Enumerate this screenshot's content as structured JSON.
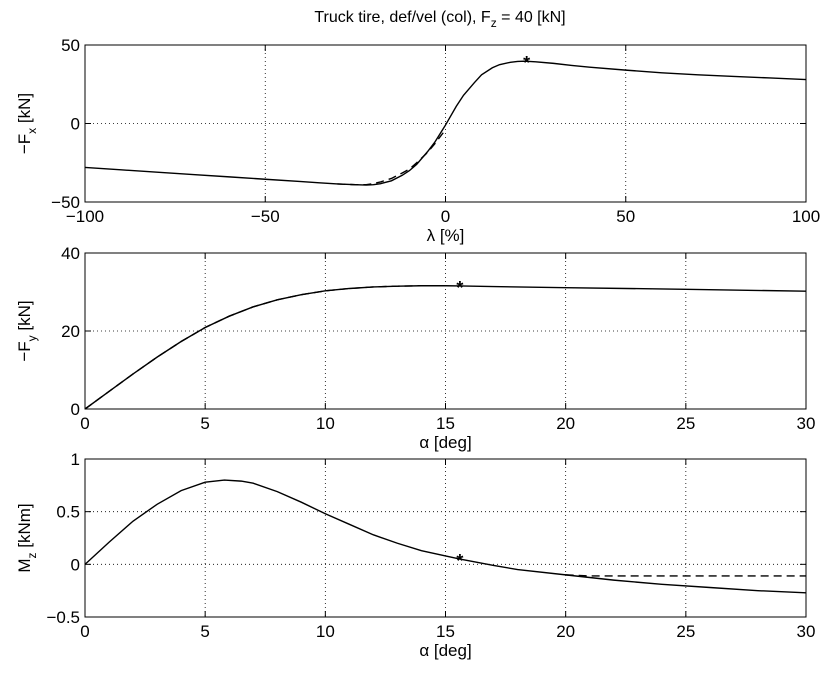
{
  "figure": {
    "title": "Truck tire, def/vel (col), F",
    "title_sub": "z",
    "title_suffix": " = 40 [kN]"
  },
  "chart_data": [
    {
      "type": "line",
      "xlabel": "λ [%]",
      "ylabel": "−F",
      "ylabel_sub": "x",
      "ylabel_suffix": " [kN]",
      "xlim": [
        -100,
        100
      ],
      "ylim": [
        -50,
        50
      ],
      "xticks": [
        "−100",
        "−50",
        "0",
        "50",
        "100"
      ],
      "yticks": [
        "−50",
        "0",
        "50"
      ],
      "xtick_values": [
        -100,
        -50,
        0,
        50,
        100
      ],
      "ytick_values": [
        -50,
        0,
        50
      ],
      "grid": true,
      "series": [
        {
          "style": "solid",
          "x": [
            -100,
            -90,
            -80,
            -70,
            -60,
            -50,
            -40,
            -35,
            -30,
            -25,
            -22,
            -20,
            -18,
            -15,
            -12,
            -10,
            -8,
            -5,
            -3,
            0,
            3,
            5,
            8,
            10,
            13,
            15,
            18,
            20,
            22,
            25,
            30,
            35,
            40,
            50,
            60,
            70,
            80,
            90,
            100
          ],
          "y": [
            -28,
            -29.5,
            -31,
            -32.5,
            -34,
            -35.5,
            -37,
            -37.8,
            -38.5,
            -39,
            -39.2,
            -39,
            -38.3,
            -36.5,
            -33,
            -30,
            -26,
            -18,
            -12,
            -1,
            11,
            18,
            26,
            31,
            35.5,
            37.5,
            39,
            39.5,
            39.7,
            39.3,
            38.3,
            37,
            35.9,
            34,
            32.3,
            31,
            30,
            29,
            28
          ]
        },
        {
          "style": "dashed",
          "x": [
            -30,
            -25,
            -22,
            -20,
            -18,
            -15,
            -12,
            -10,
            -8,
            -5,
            -3,
            0
          ],
          "y": [
            -38.5,
            -39,
            -39,
            -38.3,
            -37.2,
            -35,
            -31.5,
            -29,
            -25,
            -18.5,
            -13,
            -4
          ]
        }
      ],
      "marker": {
        "x": 22.5,
        "y": 39.7,
        "symbol": "*"
      }
    },
    {
      "type": "line",
      "xlabel": "α [deg]",
      "ylabel": "−F",
      "ylabel_sub": "y",
      "ylabel_suffix": " [kN]",
      "xlim": [
        0,
        30
      ],
      "ylim": [
        0,
        40
      ],
      "xticks": [
        "0",
        "5",
        "10",
        "15",
        "20",
        "25",
        "30"
      ],
      "yticks": [
        "0",
        "20",
        "40"
      ],
      "xtick_values": [
        0,
        5,
        10,
        15,
        20,
        25,
        30
      ],
      "ytick_values": [
        0,
        20,
        40
      ],
      "grid": true,
      "series": [
        {
          "style": "solid",
          "x": [
            0,
            1,
            2,
            3,
            4,
            5,
            6,
            7,
            8,
            9,
            10,
            11,
            12,
            13,
            14,
            15,
            15.6,
            17,
            20,
            25,
            30
          ],
          "y": [
            0,
            4.5,
            9,
            13.3,
            17.3,
            20.9,
            23.8,
            26.2,
            28,
            29.3,
            30.3,
            30.9,
            31.3,
            31.5,
            31.6,
            31.6,
            31.55,
            31.4,
            31.1,
            30.7,
            30.2
          ]
        },
        {
          "style": "dashed",
          "x": [
            0,
            1,
            2,
            3,
            4,
            5,
            6,
            7,
            8,
            9,
            10,
            11,
            12,
            13,
            14,
            15
          ],
          "y": [
            0,
            4.5,
            9,
            13.3,
            17.3,
            20.9,
            23.8,
            26.2,
            28,
            29.3,
            30.3,
            30.9,
            31.3,
            31.5,
            31.6,
            31.6
          ]
        }
      ],
      "marker": {
        "x": 15.6,
        "y": 31.5,
        "symbol": "*"
      }
    },
    {
      "type": "line",
      "xlabel": "α [deg]",
      "ylabel": "M",
      "ylabel_sub": "z",
      "ylabel_suffix": " [kNm]",
      "xlim": [
        0,
        30
      ],
      "ylim": [
        -0.5,
        1
      ],
      "xticks": [
        "0",
        "5",
        "10",
        "15",
        "20",
        "25",
        "30"
      ],
      "yticks": [
        "−0.5",
        "0",
        "0.5",
        "1"
      ],
      "xtick_values": [
        0,
        5,
        10,
        15,
        20,
        25,
        30
      ],
      "ytick_values": [
        -0.5,
        0,
        0.5,
        1
      ],
      "grid": true,
      "series": [
        {
          "style": "solid",
          "x": [
            0,
            1,
            2,
            3,
            4,
            5,
            5.8,
            6.5,
            7,
            8,
            9,
            10,
            11,
            12,
            13,
            14,
            15,
            15.6,
            17,
            18,
            20,
            22,
            24,
            26,
            28,
            30
          ],
          "y": [
            0,
            0.21,
            0.41,
            0.57,
            0.7,
            0.78,
            0.8,
            0.79,
            0.77,
            0.69,
            0.59,
            0.48,
            0.38,
            0.28,
            0.2,
            0.13,
            0.08,
            0.05,
            -0.01,
            -0.05,
            -0.1,
            -0.15,
            -0.19,
            -0.22,
            -0.25,
            -0.27
          ]
        },
        {
          "style": "dashed",
          "x": [
            20,
            21,
            22,
            24,
            26,
            28,
            30
          ],
          "y": [
            -0.1,
            -0.11,
            -0.11,
            -0.11,
            -0.11,
            -0.11,
            -0.11
          ]
        }
      ],
      "marker": {
        "x": 15.6,
        "y": 0.05,
        "symbol": "*"
      }
    }
  ]
}
